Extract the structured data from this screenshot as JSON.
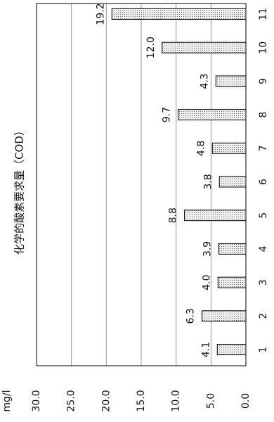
{
  "chart_data": {
    "type": "bar",
    "title": "化学的酸素要求量（COD）",
    "y_label": "mg/l",
    "categories": [
      "1",
      "2",
      "3",
      "4",
      "5",
      "6",
      "7",
      "8",
      "9",
      "10",
      "11"
    ],
    "values": [
      4.1,
      6.3,
      4.0,
      3.9,
      8.8,
      3.8,
      4.8,
      9.7,
      4.3,
      12.0,
      19.2
    ],
    "value_labels": [
      "4.1",
      "6.3",
      "4.0",
      "3.9",
      "8.8",
      "3.8",
      "4.8",
      "9.7",
      "4.3",
      "12.0",
      "19.2"
    ],
    "color": "#d0d0d0",
    "ylim": [
      0,
      30
    ],
    "yticks": [
      {
        "value": 0,
        "label": "0.0"
      },
      {
        "value": 5,
        "label": "5.0"
      },
      {
        "value": 10,
        "label": "10.0"
      },
      {
        "value": 15,
        "label": "15.0"
      },
      {
        "value": 20,
        "label": "20.0"
      },
      {
        "value": 25,
        "label": "25.0"
      },
      {
        "value": 30,
        "label": "30.0"
      }
    ],
    "grid": true
  }
}
